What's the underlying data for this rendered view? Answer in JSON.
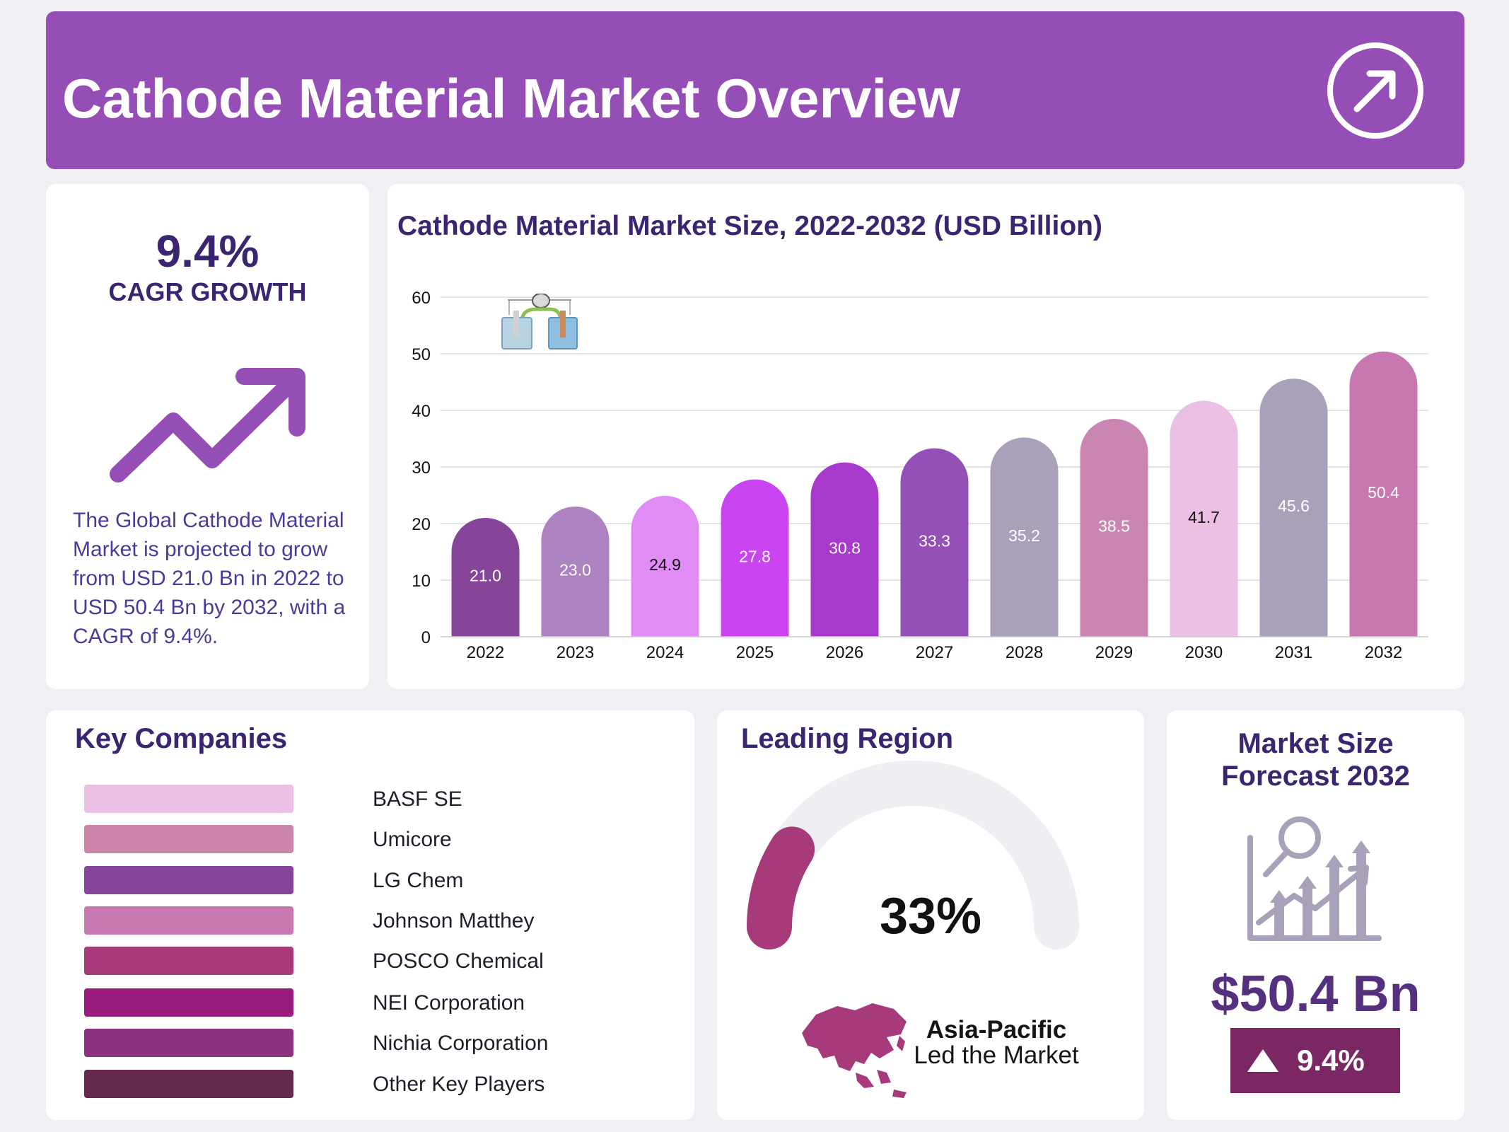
{
  "header": {
    "title": "Cathode Material Market Overview",
    "icon": "arrow-up-right-icon"
  },
  "cagr": {
    "value": "9.4%",
    "label": "CAGR GROWTH",
    "icon": "trend-up-arrow-icon",
    "description": "The Global Cathode Material Market is projected to grow from USD 21.0 Bn in 2022 to USD 50.4 Bn by 2032, with a CAGR of 9.4%."
  },
  "chart_data": {
    "type": "bar",
    "title": "Cathode Material Market Size, 2022-2032 (USD Billion)",
    "categories": [
      "2022",
      "2023",
      "2024",
      "2025",
      "2026",
      "2027",
      "2028",
      "2029",
      "2030",
      "2031",
      "2032"
    ],
    "values": [
      21.0,
      23.0,
      24.9,
      27.8,
      30.8,
      33.3,
      35.2,
      38.5,
      41.7,
      45.6,
      50.4
    ],
    "value_labels": [
      "21.0",
      "23.0",
      "24.9",
      "27.8",
      "30.8",
      "33.3",
      "35.2",
      "38.5",
      "41.7",
      "45.6",
      "50.4"
    ],
    "bar_colors": [
      "#874599",
      "#ad82c0",
      "#e08cf4",
      "#cb44f2",
      "#a73acc",
      "#9550b7",
      "#aaa0ba",
      "#cb85b3",
      "#ecbfe4",
      "#a9a0ba",
      "#c878b0"
    ],
    "label_colors": [
      "#ffffff",
      "#ffffff",
      "#111111",
      "#ffffff",
      "#ffffff",
      "#ffffff",
      "#ffffff",
      "#ffffff",
      "#111111",
      "#ffffff",
      "#ffffff"
    ],
    "yticks": [
      "0",
      "10",
      "20",
      "30",
      "40",
      "50",
      "60"
    ],
    "ylim": [
      0,
      60
    ],
    "xlabel": "",
    "ylabel": "",
    "grid": true,
    "icon": "battery-cell-icon"
  },
  "companies": {
    "title": "Key Companies",
    "items": [
      {
        "name": "BASF SE",
        "color": "#ecbfe4"
      },
      {
        "name": "Umicore",
        "color": "#cb85aa"
      },
      {
        "name": "LG Chem",
        "color": "#874599"
      },
      {
        "name": "Johnson Matthey",
        "color": "#c878b0"
      },
      {
        "name": "POSCO Chemical",
        "color": "#a63a7a"
      },
      {
        "name": "NEI Corporation",
        "color": "#9a1c7f"
      },
      {
        "name": "Nichia Corporation",
        "color": "#8e317f"
      },
      {
        "name": "Other Key Players",
        "color": "#66294e"
      }
    ]
  },
  "region": {
    "title": "Leading Region",
    "percent": "33%",
    "share": 0.33,
    "name": "Asia-Pacific",
    "subtitle": "Led the Market",
    "gauge_color": "#a63a7a",
    "track_color": "#efeef3",
    "icon": "asia-map-icon"
  },
  "forecast": {
    "title_line1": "Market Size",
    "title_line2": "Forecast 2032",
    "value": "$50.4 Bn",
    "growth": "9.4%",
    "icon": "analytics-chart-icon",
    "badge_icon": "triangle-up-icon"
  }
}
